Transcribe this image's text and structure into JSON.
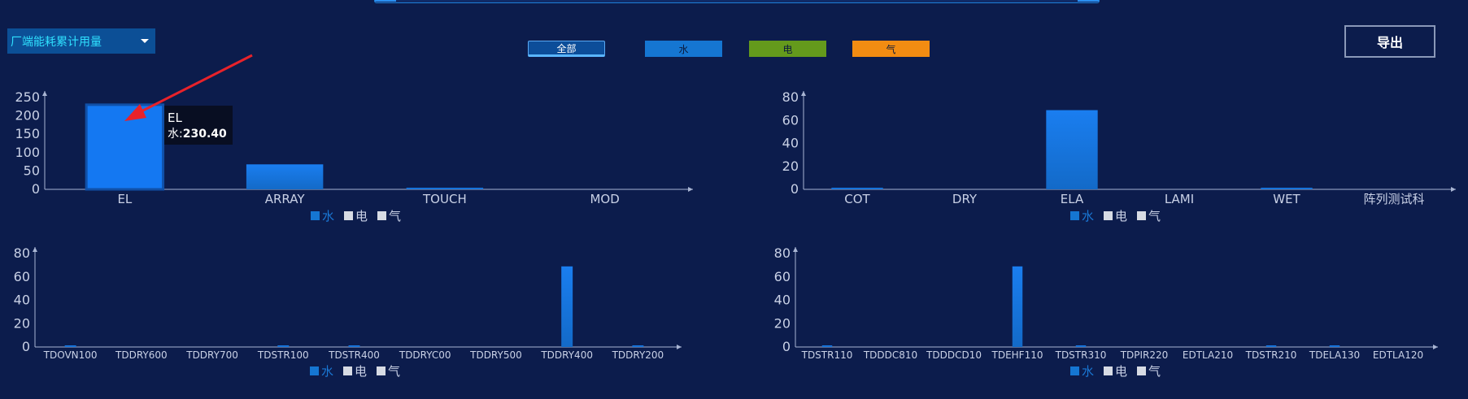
{
  "select": {
    "value": "厂端能耗累计用量"
  },
  "filters": {
    "all": "全部",
    "water": "水",
    "elec": "电",
    "gas": "气"
  },
  "export_label": "导出",
  "colors": {
    "water": "#1576d2",
    "elec": "#649a1c",
    "gas": "#f28c12",
    "background": "#0c1c4c"
  },
  "tooltip": {
    "title": "EL",
    "series": "水:",
    "value": "230.40"
  },
  "chart_data": [
    {
      "type": "bar",
      "categories": [
        "EL",
        "ARRAY",
        "TOUCH",
        "MOD"
      ],
      "series": [
        {
          "name": "水",
          "values": [
            230.4,
            68,
            1,
            0
          ]
        },
        {
          "name": "电",
          "values": [
            0,
            0,
            0,
            0
          ]
        },
        {
          "name": "气",
          "values": [
            0,
            0,
            0,
            0
          ]
        }
      ],
      "yticks": [
        0,
        50,
        100,
        150,
        200,
        250
      ],
      "ylim": [
        0,
        250
      ],
      "legend": [
        "水",
        "电",
        "气"
      ]
    },
    {
      "type": "bar",
      "categories": [
        "COT",
        "DRY",
        "ELA",
        "LAMI",
        "WET",
        "阵列测试科"
      ],
      "series": [
        {
          "name": "水",
          "values": [
            1,
            0,
            69,
            0,
            1,
            0
          ]
        },
        {
          "name": "电",
          "values": [
            0,
            0,
            0,
            0,
            0,
            0
          ]
        },
        {
          "name": "气",
          "values": [
            0,
            0,
            0,
            0,
            0,
            0
          ]
        }
      ],
      "yticks": [
        0,
        20,
        40,
        60,
        80
      ],
      "ylim": [
        0,
        80
      ],
      "legend": [
        "水",
        "电",
        "气"
      ]
    },
    {
      "type": "bar",
      "categories": [
        "TDOVN100",
        "TDDRY600",
        "TDDRY700",
        "TDSTR100",
        "TDSTR400",
        "TDDRYC00",
        "TDDRY500",
        "TDDRY400",
        "TDDRY200"
      ],
      "series": [
        {
          "name": "水",
          "values": [
            1,
            0,
            0,
            1,
            1,
            0,
            0,
            69,
            1
          ]
        },
        {
          "name": "电",
          "values": [
            0,
            0,
            0,
            0,
            0,
            0,
            0,
            0,
            0
          ]
        },
        {
          "name": "气",
          "values": [
            0,
            0,
            0,
            0,
            0,
            0,
            0,
            0,
            0
          ]
        }
      ],
      "yticks": [
        0,
        20,
        40,
        60,
        80
      ],
      "ylim": [
        0,
        80
      ],
      "legend": [
        "水",
        "电",
        "气"
      ]
    },
    {
      "type": "bar",
      "categories": [
        "TDSTR110",
        "TDDDC810",
        "TDDDCD10",
        "TDEHF110",
        "TDSTR310",
        "TDPIR220",
        "EDTLA210",
        "TDSTR210",
        "TDELA130",
        "EDTLA120"
      ],
      "series": [
        {
          "name": "水",
          "values": [
            1,
            0,
            0,
            69,
            1,
            0,
            0,
            1,
            1,
            0
          ]
        },
        {
          "name": "电",
          "values": [
            0,
            0,
            0,
            0,
            0,
            0,
            0,
            0,
            0,
            0
          ]
        },
        {
          "name": "气",
          "values": [
            0,
            0,
            0,
            0,
            0,
            0,
            0,
            0,
            0,
            0
          ]
        }
      ],
      "yticks": [
        0,
        20,
        40,
        60,
        80
      ],
      "ylim": [
        0,
        80
      ],
      "legend": [
        "水",
        "电",
        "气"
      ]
    }
  ]
}
